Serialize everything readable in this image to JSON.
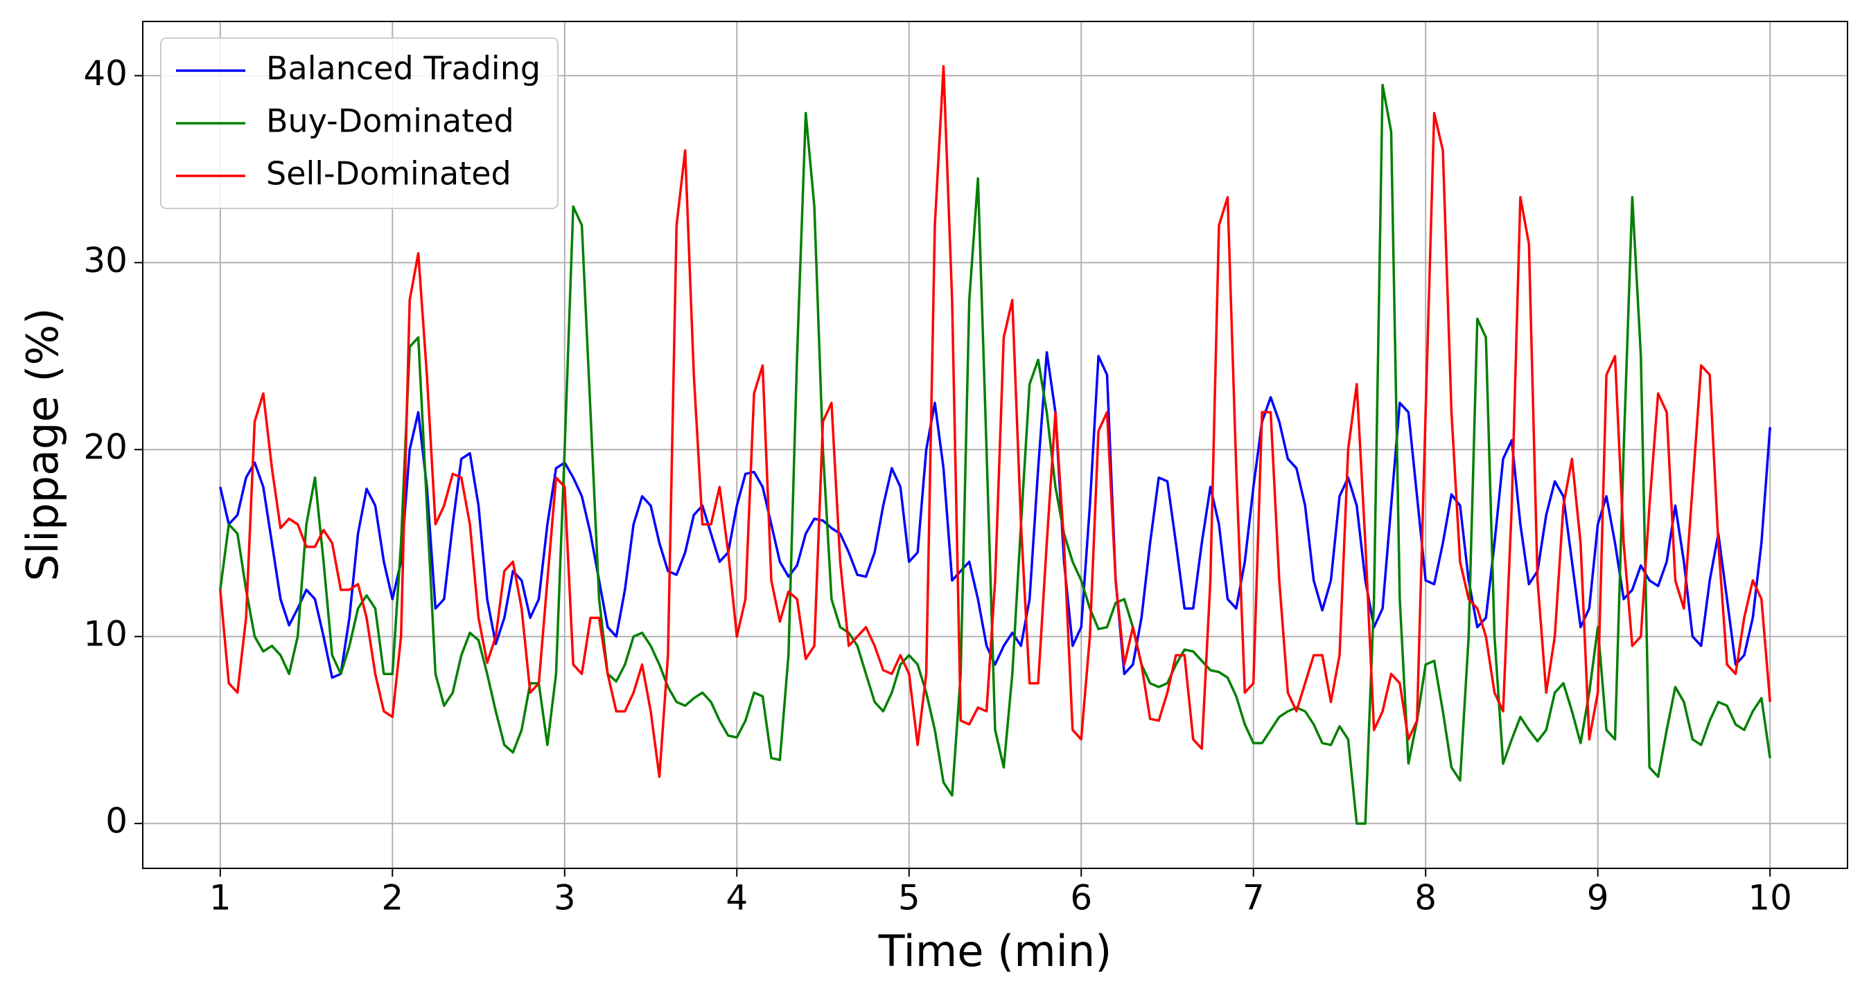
{
  "chart_data": {
    "type": "line",
    "xlabel": "Time (min)",
    "ylabel": "Slippage (%)",
    "xlim": [
      0.55,
      10.45
    ],
    "ylim": [
      -2.4,
      42.9
    ],
    "xticks": [
      1,
      2,
      3,
      4,
      5,
      6,
      7,
      8,
      9,
      10
    ],
    "yticks": [
      0,
      10,
      20,
      30,
      40
    ],
    "grid": true,
    "legend": "upper left",
    "x": [
      1,
      1.05,
      1.1,
      1.15,
      1.2,
      1.25,
      1.3,
      1.35,
      1.4,
      1.45,
      1.5,
      1.55,
      1.6,
      1.65,
      1.7,
      1.75,
      1.8,
      1.85,
      1.9,
      1.95,
      2,
      2.05,
      2.1,
      2.15,
      2.2,
      2.25,
      2.3,
      2.35,
      2.4,
      2.45,
      2.5,
      2.55,
      2.6,
      2.65,
      2.7,
      2.75,
      2.8,
      2.85,
      2.9,
      2.95,
      3,
      3.05,
      3.1,
      3.15,
      3.2,
      3.25,
      3.3,
      3.35,
      3.4,
      3.45,
      3.5,
      3.55,
      3.6,
      3.65,
      3.7,
      3.75,
      3.8,
      3.85,
      3.9,
      3.95,
      4,
      4.05,
      4.1,
      4.15,
      4.2,
      4.25,
      4.3,
      4.35,
      4.4,
      4.45,
      4.5,
      4.55,
      4.6,
      4.65,
      4.7,
      4.75,
      4.8,
      4.85,
      4.9,
      4.95,
      5,
      5.05,
      5.1,
      5.15,
      5.2,
      5.25,
      5.3,
      5.35,
      5.4,
      5.45,
      5.5,
      5.55,
      5.6,
      5.65,
      5.7,
      5.75,
      5.8,
      5.85,
      5.9,
      5.95,
      6,
      6.05,
      6.1,
      6.15,
      6.2,
      6.25,
      6.3,
      6.35,
      6.4,
      6.45,
      6.5,
      6.55,
      6.6,
      6.65,
      6.7,
      6.75,
      6.8,
      6.85,
      6.9,
      6.95,
      7,
      7.05,
      7.1,
      7.15,
      7.2,
      7.25,
      7.3,
      7.35,
      7.4,
      7.45,
      7.5,
      7.55,
      7.6,
      7.65,
      7.7,
      7.75,
      7.8,
      7.85,
      7.9,
      7.95,
      8,
      8.05,
      8.1,
      8.15,
      8.2,
      8.25,
      8.3,
      8.35,
      8.4,
      8.45,
      8.5,
      8.55,
      8.6,
      8.65,
      8.7,
      8.75,
      8.8,
      8.85,
      8.9,
      8.95,
      9,
      9.05,
      9.1,
      9.15,
      9.2,
      9.25,
      9.3,
      9.35,
      9.4,
      9.45,
      9.5,
      9.55,
      9.6,
      9.65,
      9.7,
      9.75,
      9.8,
      9.85,
      9.9,
      9.95,
      10
    ],
    "series": [
      {
        "name": "Balanced Trading",
        "color": "#0000ff",
        "values": [
          18,
          16,
          16.5,
          18.5,
          19.3,
          18,
          15,
          12,
          10.6,
          11.5,
          12.5,
          12,
          10,
          7.8,
          8,
          11,
          15.5,
          17.9,
          17,
          14,
          12,
          14,
          20,
          22,
          18,
          11.5,
          12,
          16,
          19.5,
          19.8,
          17,
          12,
          9.6,
          11,
          13.5,
          13,
          11,
          12,
          16,
          19,
          19.3,
          18.5,
          17.5,
          15.5,
          13,
          10.5,
          10,
          12.5,
          16,
          17.5,
          17,
          15,
          13.5,
          13.3,
          14.5,
          16.5,
          17,
          15.5,
          14,
          14.5,
          17,
          18.7,
          18.8,
          18,
          16,
          14,
          13.2,
          13.8,
          15.5,
          16.3,
          16.2,
          15.8,
          15.5,
          14.5,
          13.3,
          13.2,
          14.5,
          17,
          19,
          18,
          14,
          14.5,
          20,
          22.5,
          19,
          13,
          13.5,
          14,
          12,
          9.5,
          8.5,
          9.5,
          10.2,
          9.5,
          12,
          19,
          25.2,
          22,
          14,
          9.5,
          10.5,
          17,
          25,
          24,
          13,
          8,
          8.5,
          11,
          15,
          18.5,
          18.3,
          15,
          11.5,
          11.5,
          15,
          18,
          16,
          12,
          11.5,
          14,
          18,
          21.5,
          22.8,
          21.5,
          19.5,
          19,
          17,
          13,
          11.4,
          13,
          17.5,
          18.5,
          17,
          13,
          10.5,
          11.5,
          17,
          22.5,
          22,
          17.5,
          13,
          12.8,
          15,
          17.6,
          17,
          13,
          10.5,
          11,
          15,
          19.5,
          20.5,
          16,
          12.8,
          13.5,
          16.5,
          18.3,
          17.5,
          14,
          10.5,
          11.5,
          16,
          17.5,
          15,
          12,
          12.5,
          13.8,
          13,
          12.7,
          14,
          17,
          14,
          10,
          9.5,
          13,
          15.5,
          12,
          8.5,
          9,
          11,
          15,
          21.2
        ]
      },
      {
        "name": "Buy-Dominated",
        "color": "#008000",
        "values": [
          12.5,
          16,
          15.5,
          12.5,
          10,
          9.2,
          9.5,
          9,
          8,
          10,
          16,
          18.5,
          14,
          9,
          8,
          9.5,
          11.5,
          12.2,
          11.5,
          8,
          8,
          15,
          25.5,
          26,
          17,
          8,
          6.3,
          7,
          9,
          10.2,
          9.8,
          8,
          6,
          4.2,
          3.8,
          5,
          7.5,
          7.5,
          4.2,
          8,
          20,
          33,
          32,
          22,
          12,
          8,
          7.6,
          8.5,
          10,
          10.2,
          9.5,
          8.5,
          7.3,
          6.5,
          6.3,
          6.7,
          7,
          6.5,
          5.5,
          4.7,
          4.6,
          5.5,
          7,
          6.8,
          3.5,
          3.4,
          9,
          25,
          38,
          33,
          20,
          12,
          10.5,
          10.2,
          9.5,
          8,
          6.5,
          6,
          7,
          8.5,
          9,
          8.5,
          7,
          5,
          2.2,
          1.5,
          8,
          28,
          34.5,
          20,
          5,
          3,
          8,
          16,
          23.5,
          24.8,
          22,
          18,
          15.5,
          14,
          13,
          11.5,
          10.4,
          10.5,
          11.8,
          12,
          10.5,
          8.5,
          7.5,
          7.3,
          7.5,
          8.5,
          9.3,
          9.2,
          8.7,
          8.2,
          8.1,
          7.8,
          6.8,
          5.3,
          4.3,
          4.3,
          5,
          5.7,
          6,
          6.2,
          6,
          5.3,
          4.3,
          4.2,
          5.2,
          4.5,
          0,
          0,
          12,
          39.5,
          37,
          12,
          3.2,
          5.5,
          8.5,
          8.7,
          6,
          3,
          2.3,
          10,
          27,
          26,
          10,
          3.2,
          4.5,
          5.7,
          5,
          4.4,
          5,
          7,
          7.5,
          6,
          4.3,
          7,
          10.5,
          5,
          4.5,
          20,
          33.5,
          25,
          3,
          2.5,
          5,
          7.3,
          6.5,
          4.5,
          4.2,
          5.5,
          6.5,
          6.3,
          5.3,
          5,
          6,
          6.7,
          3.5
        ]
      },
      {
        "name": "Sell-Dominated",
        "color": "#ff0000",
        "values": [
          12.5,
          7.5,
          7,
          11,
          21.5,
          23,
          19,
          15.8,
          16.3,
          16,
          14.8,
          14.8,
          15.7,
          15,
          12.5,
          12.5,
          12.8,
          11,
          8,
          6,
          5.7,
          10,
          28,
          30.5,
          24,
          16,
          17,
          18.7,
          18.5,
          16,
          11,
          8.6,
          10,
          13.5,
          14,
          11.5,
          7,
          7.5,
          13,
          18.5,
          18,
          8.5,
          8,
          11,
          11,
          8,
          6,
          6,
          7,
          8.5,
          6,
          2.5,
          9,
          32,
          36,
          24,
          16,
          16,
          18,
          14.5,
          10,
          12,
          23,
          24.5,
          13,
          10.8,
          12.4,
          12,
          8.8,
          9.5,
          21.5,
          22.5,
          14,
          9.5,
          10,
          10.5,
          9.5,
          8.2,
          8,
          9,
          8,
          4.2,
          8,
          32,
          40.5,
          28,
          5.5,
          5.3,
          6.2,
          6,
          13,
          26,
          28,
          16,
          7.5,
          7.5,
          15,
          22,
          15,
          5,
          4.5,
          10,
          21,
          22,
          13,
          8.5,
          10.5,
          8.5,
          5.6,
          5.5,
          7,
          9,
          9,
          4.5,
          4,
          13,
          32,
          33.5,
          19,
          7,
          7.5,
          22,
          22,
          13,
          7,
          6,
          7.5,
          9,
          9,
          6.5,
          9,
          20,
          23.5,
          15,
          5,
          6,
          8,
          7.5,
          4.5,
          5.5,
          22,
          38,
          36,
          22,
          14,
          12,
          11.5,
          10,
          7,
          6,
          17,
          33.5,
          31,
          13,
          7,
          10,
          17,
          19.5,
          15,
          4.5,
          7,
          24,
          25,
          15,
          9.5,
          10,
          17,
          23,
          22,
          13,
          11.5,
          18,
          24.5,
          24,
          15,
          8.5,
          8,
          11,
          13,
          12,
          6.5
        ]
      }
    ]
  }
}
